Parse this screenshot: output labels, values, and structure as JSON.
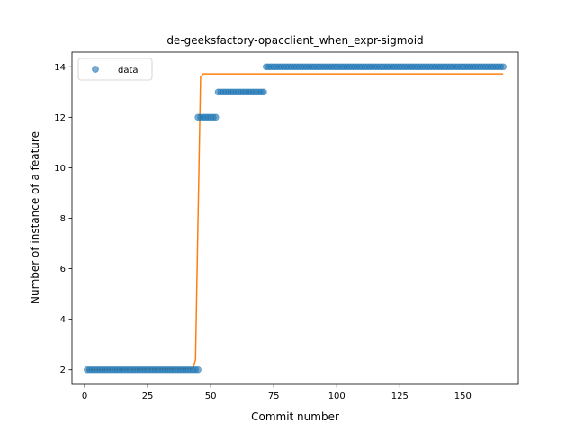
{
  "chart_data": {
    "type": "scatter",
    "title": "de-geeksfactory-opacclient_when_expr-sigmoid",
    "xlabel": "Commit number",
    "ylabel": "Number of instance of a feature",
    "xlim": [
      -5,
      172
    ],
    "ylim": [
      1.42,
      14.58
    ],
    "xticks": [
      0,
      25,
      50,
      75,
      100,
      125,
      150
    ],
    "yticks": [
      2,
      4,
      6,
      8,
      10,
      12,
      14
    ],
    "grid": false,
    "legend": {
      "position": "top-left",
      "entries": [
        "data"
      ]
    },
    "colors": {
      "data": "#1f77b4",
      "fit": "#ff7f0e"
    },
    "series": [
      {
        "name": "data",
        "kind": "scatter",
        "segments": [
          {
            "x_from": 1,
            "x_to": 45,
            "y": 2
          },
          {
            "x_from": 45,
            "x_to": 52,
            "y": 12
          },
          {
            "x_from": 53,
            "x_to": 71,
            "y": 13
          },
          {
            "x_from": 72,
            "x_to": 166,
            "y": 14
          }
        ]
      },
      {
        "name": "",
        "kind": "line",
        "x": [
          1,
          43,
          44,
          45,
          46,
          47,
          166
        ],
        "y": [
          2.0,
          2.05,
          2.4,
          8.0,
          13.6,
          13.72,
          13.72
        ]
      }
    ]
  }
}
